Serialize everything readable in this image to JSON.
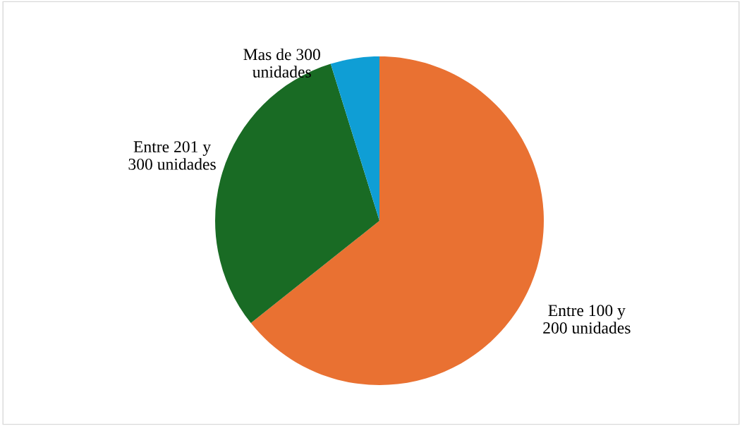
{
  "chart_data": {
    "type": "pie",
    "categories": [
      "Entre 100 y\n200 unidades",
      "Entre 201 y\n300 unidades",
      "Mas de 300\nunidades"
    ],
    "values": [
      64.3,
      30.9,
      4.8
    ],
    "colors": [
      "#e97132",
      "#196b24",
      "#0f9ed5"
    ]
  }
}
